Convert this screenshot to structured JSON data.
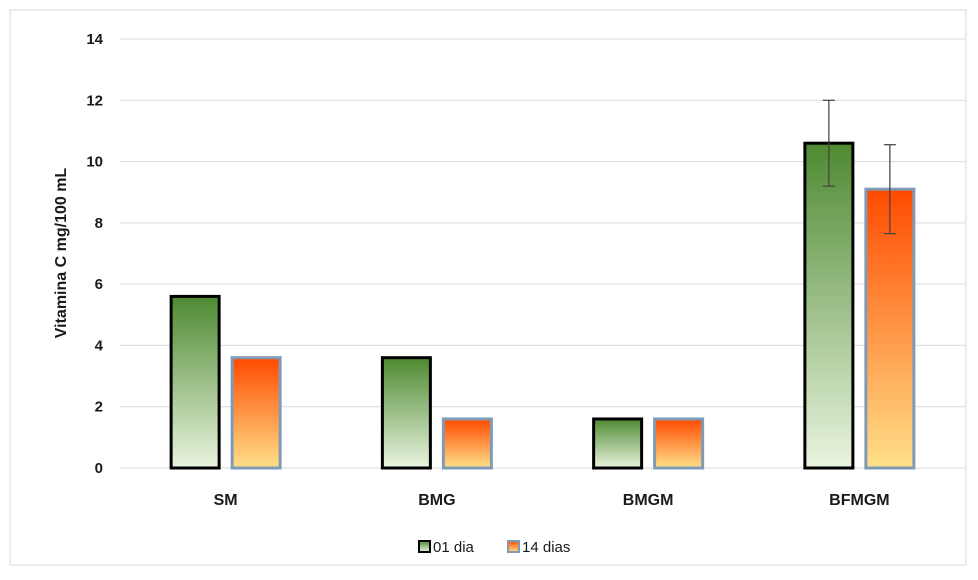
{
  "chart_data": {
    "type": "bar",
    "title": "",
    "xlabel": "",
    "ylabel": "Vitamina C mg/100 mL",
    "ylim": [
      0,
      14
    ],
    "yticks": [
      0,
      2,
      4,
      6,
      8,
      10,
      12,
      14
    ],
    "grid": true,
    "legend_position": "bottom",
    "categories": [
      "SM",
      "BMG",
      "BMGM",
      "BFMGM"
    ],
    "series": [
      {
        "name": "01 dia",
        "values": [
          5.6,
          3.6,
          1.6,
          10.6
        ],
        "errors": [
          0.0,
          0.0,
          0.0,
          1.4
        ],
        "fill_top": "#4e8a32",
        "fill_bottom": "#eaf4df",
        "stroke": "#000000"
      },
      {
        "name": "14 dias",
        "values": [
          3.6,
          1.6,
          1.6,
          9.1
        ],
        "errors": [
          0.0,
          0.0,
          0.0,
          1.45
        ],
        "fill_top": "#ff4a00",
        "fill_bottom": "#ffe08a",
        "stroke": "#7f9bb8"
      }
    ]
  }
}
